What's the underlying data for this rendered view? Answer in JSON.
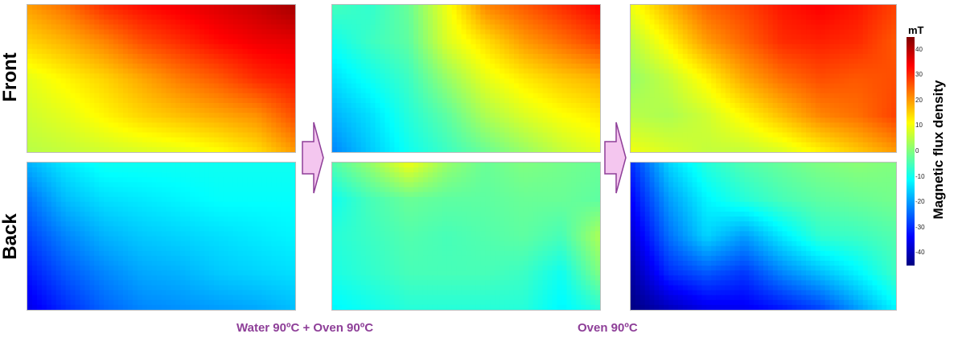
{
  "chart_data": {
    "type": "heatmap",
    "row_labels": [
      "Front",
      "Back"
    ],
    "column_captions": [
      "",
      "Water 90ºC + Oven 90ºC",
      "Oven 90ºC"
    ],
    "colorbar": {
      "unit": "mT",
      "title": "Magnetic flux density",
      "range": [
        -45,
        45
      ],
      "ticks": [
        40,
        30,
        20,
        10,
        0,
        -10,
        -20,
        -30,
        -40
      ],
      "colormap": "jet"
    },
    "grid_rows": 5,
    "grid_cols": 8,
    "panels": [
      {
        "row": "Front",
        "column": 1,
        "values": [
          [
            20,
            24,
            30,
            33,
            35,
            37,
            39,
            42
          ],
          [
            15,
            18,
            22,
            27,
            30,
            33,
            35,
            36
          ],
          [
            9,
            12,
            15,
            19,
            23,
            26,
            30,
            32
          ],
          [
            7,
            9,
            12,
            15,
            17,
            19,
            21,
            27
          ],
          [
            5,
            6,
            7,
            8,
            9,
            11,
            14,
            20
          ]
        ]
      },
      {
        "row": "Back",
        "column": 1,
        "values": [
          [
            -18,
            -13,
            -10,
            -10,
            -10,
            -10,
            -10,
            -10
          ],
          [
            -24,
            -17,
            -14,
            -13,
            -12,
            -11,
            -11,
            -11
          ],
          [
            -28,
            -22,
            -18,
            -16,
            -15,
            -14,
            -13,
            -12
          ],
          [
            -32,
            -26,
            -22,
            -19,
            -18,
            -16,
            -15,
            -14
          ],
          [
            -36,
            -30,
            -25,
            -22,
            -21,
            -20,
            -19,
            -17
          ]
        ]
      },
      {
        "row": "Front",
        "column": 2,
        "values": [
          [
            -5,
            -7,
            -2,
            10,
            22,
            26,
            30,
            34
          ],
          [
            -10,
            -6,
            -3,
            8,
            14,
            20,
            24,
            28
          ],
          [
            -14,
            -10,
            -6,
            2,
            9,
            13,
            16,
            18
          ],
          [
            -18,
            -14,
            -8,
            -3,
            4,
            8,
            11,
            13
          ],
          [
            -22,
            -16,
            -10,
            -6,
            -2,
            2,
            6,
            9
          ]
        ]
      },
      {
        "row": "Back",
        "column": 2,
        "values": [
          [
            -4,
            2,
            10,
            2,
            -2,
            0,
            -1,
            -2
          ],
          [
            -10,
            -5,
            -2,
            -3,
            -3,
            -2,
            -2,
            -3
          ],
          [
            -8,
            -6,
            -4,
            -5,
            -4,
            -3,
            -5,
            4
          ],
          [
            -9,
            -7,
            -5,
            -5,
            -5,
            -6,
            -10,
            0
          ],
          [
            -12,
            -10,
            -8,
            -8,
            -8,
            -8,
            -12,
            -8
          ]
        ]
      },
      {
        "row": "Front",
        "column": 3,
        "values": [
          [
            10,
            18,
            25,
            28,
            32,
            34,
            32,
            28
          ],
          [
            5,
            12,
            20,
            25,
            30,
            31,
            30,
            26
          ],
          [
            2,
            6,
            12,
            19,
            24,
            27,
            26,
            27
          ],
          [
            5,
            4,
            7,
            12,
            17,
            22,
            24,
            28
          ],
          [
            10,
            8,
            6,
            6,
            8,
            12,
            16,
            20
          ]
        ]
      },
      {
        "row": "Back",
        "column": 3,
        "values": [
          [
            -30,
            -15,
            -8,
            -4,
            -2,
            0,
            1,
            0
          ],
          [
            -34,
            -20,
            -12,
            -8,
            -5,
            -3,
            -2,
            -1
          ],
          [
            -38,
            -24,
            -15,
            -20,
            -13,
            -7,
            -6,
            -4
          ],
          [
            -42,
            -30,
            -26,
            -29,
            -22,
            -17,
            -12,
            -6
          ],
          [
            -45,
            -40,
            -36,
            -35,
            -32,
            -28,
            -20,
            -12
          ]
        ]
      }
    ]
  }
}
